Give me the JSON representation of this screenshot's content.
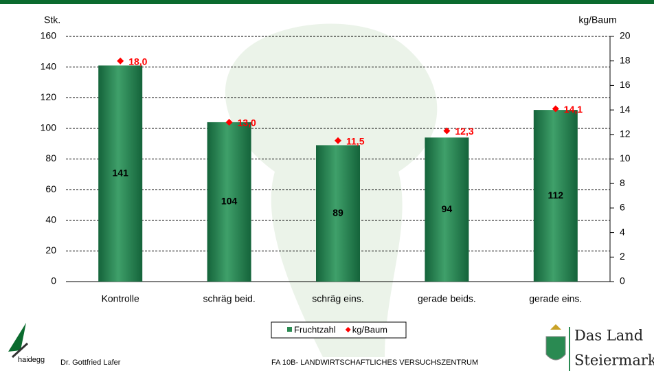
{
  "chart_data": {
    "type": "bar",
    "y_label": "Stk.",
    "y2_label": "kg/Baum",
    "categories": [
      "Kontrolle",
      "schräg beid.",
      "schräg eins.",
      "gerade beids.",
      "gerade eins."
    ],
    "series": [
      {
        "name": "Fruchtzahl",
        "type": "bar",
        "color": "#2a8a52",
        "values": [
          141,
          104,
          89,
          94,
          112
        ]
      },
      {
        "name": "kg/Baum",
        "type": "scatter",
        "axis": "y2",
        "color": "#ff0000",
        "values": [
          18,
          13,
          11.5,
          12.3,
          14.1
        ],
        "value_labels": [
          "18,0",
          "13,0",
          "11,5",
          "12,3",
          "14,1"
        ]
      }
    ],
    "ylim": [
      0,
      160
    ],
    "yticks": [
      0,
      20,
      40,
      60,
      80,
      100,
      120,
      140,
      160
    ],
    "y2lim": [
      0,
      20
    ],
    "y2ticks": [
      0,
      2,
      4,
      6,
      8,
      10,
      12,
      14,
      16,
      18,
      20
    ],
    "grid": true,
    "legend": "bottom"
  },
  "footer": {
    "logo_text": "haidegg",
    "author": "Dr. Gottfried Lafer",
    "institute": "FA 10B- LANDWIRTSCHAFTLICHES VERSUCHSZENTRUM",
    "brand_line1": "Das Land",
    "brand_line2": "Steiermark"
  }
}
